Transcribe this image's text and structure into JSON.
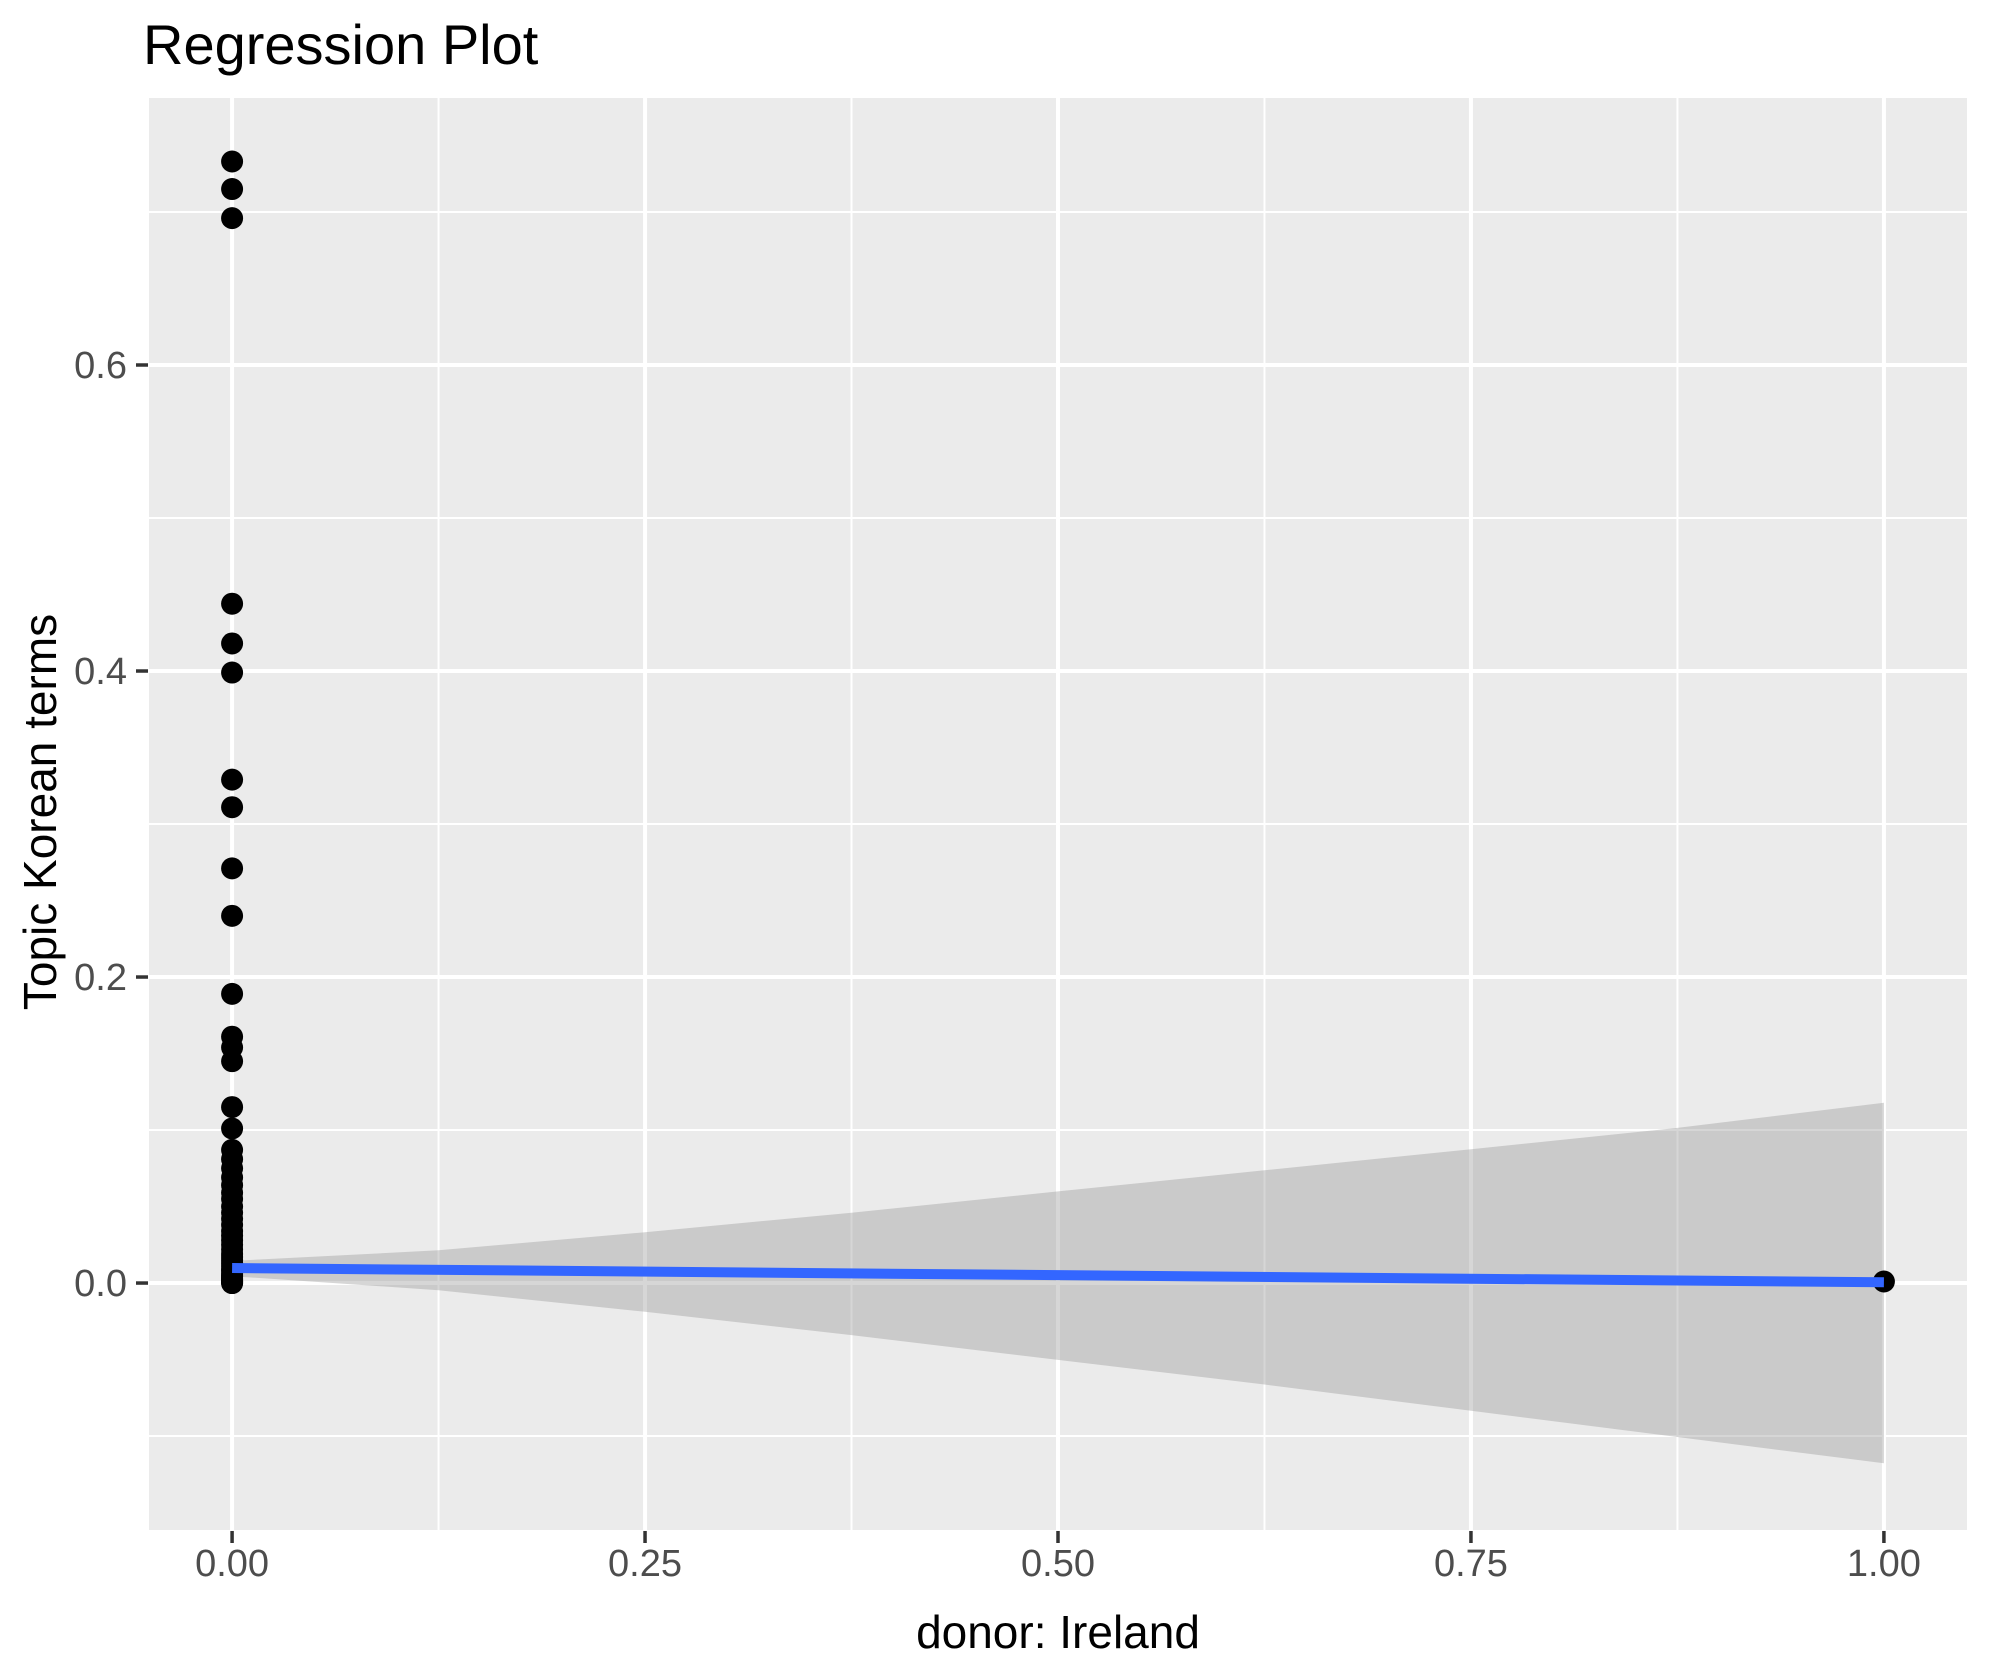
{
  "chart_data": {
    "type": "scatter",
    "title": "Regression Plot",
    "xlabel": "donor: Ireland",
    "ylabel": "Topic Korean terms",
    "grid": true,
    "legend_position": "none",
    "x_axis": {
      "range": [
        -0.0503,
        1.0503
      ],
      "major_ticks": [
        0,
        0.25,
        0.5,
        0.75,
        1.0
      ],
      "major_tick_labels": [
        "0.00",
        "0.25",
        "0.50",
        "0.75",
        "1.00"
      ],
      "minor_ticks": [
        0.125,
        0.375,
        0.625,
        0.875
      ]
    },
    "y_axis": {
      "range": [
        -0.1614,
        0.7745
      ],
      "major_ticks": [
        0,
        0.2,
        0.4,
        0.6
      ],
      "major_tick_labels": [
        "0.0",
        "0.2",
        "0.4",
        "0.6"
      ],
      "minor_ticks": [
        -0.1,
        0.1,
        0.3,
        0.5,
        0.7
      ]
    },
    "points": [
      [
        0,
        0.733
      ],
      [
        0,
        0.715
      ],
      [
        0,
        0.696
      ],
      [
        0,
        0.444
      ],
      [
        0,
        0.418
      ],
      [
        0,
        0.399
      ],
      [
        0,
        0.329
      ],
      [
        0,
        0.311
      ],
      [
        0,
        0.271
      ],
      [
        0,
        0.24
      ],
      [
        0,
        0.189
      ],
      [
        0,
        0.161
      ],
      [
        0,
        0.154
      ],
      [
        0,
        0.145
      ],
      [
        0,
        0.115
      ],
      [
        0,
        0.101
      ],
      [
        0,
        0.087
      ],
      [
        0,
        0.081
      ],
      [
        0,
        0.075
      ],
      [
        0,
        0.069
      ],
      [
        0,
        0.064
      ],
      [
        0,
        0.059
      ],
      [
        0,
        0.055
      ],
      [
        0,
        0.05
      ],
      [
        0,
        0.046
      ],
      [
        0,
        0.042
      ],
      [
        0,
        0.038
      ],
      [
        0,
        0.034
      ],
      [
        0,
        0.031
      ],
      [
        0,
        0.028
      ],
      [
        0,
        0.025
      ],
      [
        0,
        0.022
      ],
      [
        0,
        0.019
      ],
      [
        0,
        0.017
      ],
      [
        0,
        0.015
      ],
      [
        0,
        0.013
      ],
      [
        0,
        0.011
      ],
      [
        0,
        0.009
      ],
      [
        0,
        0.008
      ],
      [
        0,
        0.006
      ],
      [
        0,
        0.005
      ],
      [
        0,
        0.004
      ],
      [
        0,
        0.003
      ],
      [
        0,
        0.002
      ],
      [
        0,
        0.002
      ],
      [
        0,
        0.001
      ],
      [
        0,
        0.001
      ],
      [
        0,
        0.0
      ],
      [
        0,
        0.0
      ],
      [
        1,
        0.001
      ]
    ],
    "regression_line": {
      "x": [
        0,
        1
      ],
      "y": [
        0.0098,
        0.0005
      ]
    },
    "confidence_band": {
      "x": [
        0,
        0.125,
        0.25,
        0.375,
        0.5,
        0.625,
        0.75,
        0.875,
        1
      ],
      "upper": [
        0.0145,
        0.0214,
        0.0332,
        0.046,
        0.0599,
        0.0737,
        0.0875,
        0.1014,
        0.1178
      ],
      "lower": [
        0.0045,
        -0.0047,
        -0.0188,
        -0.034,
        -0.0502,
        -0.0663,
        -0.0835,
        -0.1006,
        -0.1178
      ]
    }
  },
  "style": {
    "panel_background": "#EBEBEB",
    "gridline_color": "#FFFFFF",
    "point_color": "#000000",
    "point_radius": 11,
    "line_color": "#3366FF",
    "line_width": 10,
    "band_fill": "rgba(153,153,153,0.4)",
    "tick_label_color": "#4D4D4D",
    "tick_mark_color": "#333333",
    "tick_label_size": 38
  }
}
